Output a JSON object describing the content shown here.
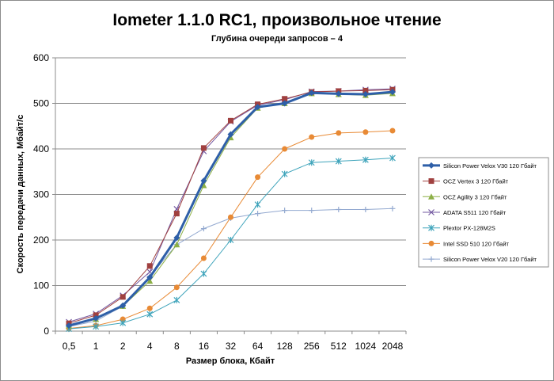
{
  "chart_data": {
    "type": "line",
    "title": "Iometer 1.1.0 RC1, произвольное чтение",
    "subtitle": "Глубина очереди запросов – 4",
    "xlabel": "Размер блока, Кбайт",
    "ylabel": "Скорость передачи данных, Мбайт/с",
    "categories": [
      "0,5",
      "1",
      "2",
      "4",
      "8",
      "16",
      "32",
      "64",
      "128",
      "256",
      "512",
      "1024",
      "2048"
    ],
    "ylim": [
      0,
      600
    ],
    "yticks": [
      0,
      100,
      200,
      300,
      400,
      500,
      600
    ],
    "grid": "horizontal",
    "legend": "right",
    "series": [
      {
        "name": "Silicon Power Velox V30 120 Гбайт",
        "color": "#2e5fa8",
        "marker": "diamond",
        "width": 3,
        "values": [
          12,
          28,
          56,
          118,
          205,
          330,
          432,
          492,
          500,
          523,
          521,
          520,
          525
        ]
      },
      {
        "name": "OCZ Vertex 3 120 Гбайт",
        "color": "#a0403f",
        "marker": "square",
        "width": 1,
        "values": [
          17,
          35,
          75,
          143,
          258,
          402,
          462,
          498,
          510,
          525,
          527,
          528,
          530
        ]
      },
      {
        "name": "OCZ Agility 3 120 Гбайт",
        "color": "#8caf45",
        "marker": "triangle",
        "width": 1,
        "values": [
          12,
          26,
          55,
          110,
          190,
          320,
          425,
          490,
          500,
          522,
          520,
          518,
          522
        ]
      },
      {
        "name": "ADATA S511 120 Гбайт",
        "color": "#7358a0",
        "marker": "x",
        "width": 1,
        "values": [
          20,
          38,
          78,
          130,
          268,
          395,
          460,
          496,
          508,
          526,
          527,
          530,
          532
        ]
      },
      {
        "name": "Plextor PX-128M2S",
        "color": "#3fa4bb",
        "marker": "star",
        "width": 1,
        "values": [
          5,
          10,
          18,
          37,
          68,
          126,
          200,
          278,
          345,
          370,
          373,
          376,
          380
        ]
      },
      {
        "name": "Intel SSD 510 120 Гбайт",
        "color": "#e88a35",
        "marker": "circle",
        "width": 1,
        "values": [
          6,
          12,
          26,
          50,
          96,
          160,
          250,
          338,
          400,
          426,
          435,
          437,
          440
        ]
      },
      {
        "name": "Silicon Power Velox V20 120 Гбайт",
        "color": "#93a9d0",
        "marker": "plus",
        "width": 1,
        "values": [
          10,
          22,
          55,
          120,
          190,
          225,
          248,
          258,
          265,
          265,
          267,
          267,
          269
        ]
      }
    ]
  }
}
